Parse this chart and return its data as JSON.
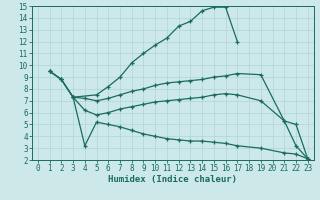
{
  "xlabel": "Humidex (Indice chaleur)",
  "bg_color": "#cde8e8",
  "line_color": "#1a6b60",
  "grid_color": "#aed4d4",
  "xlim": [
    -0.5,
    23.5
  ],
  "ylim": [
    2,
    15
  ],
  "xticks": [
    0,
    1,
    2,
    3,
    4,
    5,
    6,
    7,
    8,
    9,
    10,
    11,
    12,
    13,
    14,
    15,
    16,
    17,
    18,
    19,
    20,
    21,
    22,
    23
  ],
  "yticks": [
    2,
    3,
    4,
    5,
    6,
    7,
    8,
    9,
    10,
    11,
    12,
    13,
    14,
    15
  ],
  "lines": [
    {
      "x": [
        1,
        2,
        3,
        5,
        6,
        7,
        8,
        9,
        10,
        11,
        12,
        13,
        14,
        15,
        16,
        17
      ],
      "y": [
        9.5,
        8.8,
        7.3,
        7.5,
        8.2,
        9.0,
        10.2,
        11.0,
        11.7,
        12.3,
        13.3,
        13.7,
        14.6,
        14.9,
        14.9,
        12.0
      ]
    },
    {
      "x": [
        1,
        2,
        3,
        4,
        5,
        6,
        7,
        8,
        9,
        10,
        11,
        12,
        13,
        14,
        15,
        16,
        17,
        19,
        21,
        22,
        23
      ],
      "y": [
        9.5,
        8.8,
        7.3,
        7.2,
        7.0,
        7.2,
        7.5,
        7.8,
        8.0,
        8.3,
        8.5,
        8.6,
        8.7,
        8.8,
        9.0,
        9.1,
        9.3,
        9.2,
        5.3,
        5.0,
        2.1
      ]
    },
    {
      "x": [
        1,
        2,
        3,
        4,
        5,
        6,
        7,
        8,
        9,
        10,
        11,
        12,
        13,
        14,
        15,
        16,
        17,
        19,
        21,
        22,
        23
      ],
      "y": [
        9.5,
        8.8,
        7.3,
        6.2,
        5.8,
        6.0,
        6.3,
        6.5,
        6.7,
        6.9,
        7.0,
        7.1,
        7.2,
        7.3,
        7.5,
        7.6,
        7.5,
        7.0,
        5.3,
        3.2,
        2.1
      ]
    },
    {
      "x": [
        3,
        4,
        5,
        6,
        7,
        8,
        9,
        10,
        11,
        12,
        13,
        14,
        15,
        16,
        17,
        19,
        21,
        22,
        23
      ],
      "y": [
        7.3,
        3.2,
        5.2,
        5.0,
        4.8,
        4.5,
        4.2,
        4.0,
        3.8,
        3.7,
        3.6,
        3.6,
        3.5,
        3.4,
        3.2,
        3.0,
        2.6,
        2.5,
        2.1
      ]
    }
  ]
}
